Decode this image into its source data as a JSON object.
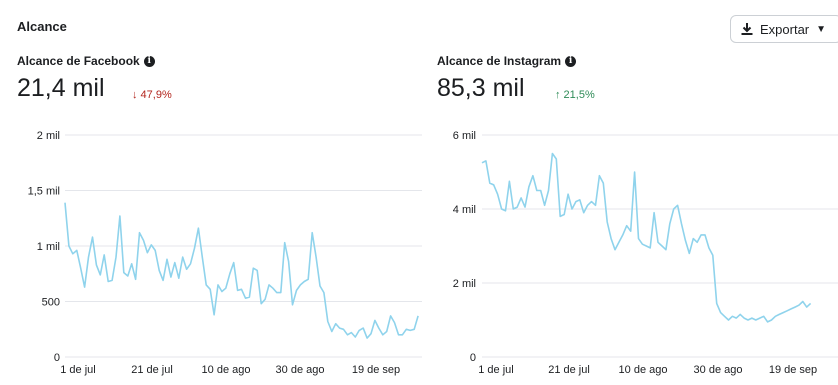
{
  "header": {
    "title": "Alcance",
    "export_label": "Exportar"
  },
  "icons": {
    "download": "download-icon",
    "info": "info-icon",
    "caret": "caret-down-icon"
  },
  "colors": {
    "line": "#8fd3ec",
    "down": "#b3261e",
    "up": "#2e8b57",
    "grid": "#e4e6eb"
  },
  "panels": [
    {
      "title": "Alcance de Facebook",
      "value": "21,4 mil",
      "delta": "↓ 47,9%",
      "trend": "down"
    },
    {
      "title": "Alcance de Instagram",
      "value": "85,3 mil",
      "delta": "↑ 21,5%",
      "trend": "up"
    }
  ],
  "chart_data": [
    {
      "type": "line",
      "title": "Alcance de Facebook",
      "xlabel": "",
      "ylabel": "",
      "ylim": [
        0,
        2000
      ],
      "yticks": [
        0,
        500,
        1000,
        1500,
        2000
      ],
      "ytick_labels": [
        "0",
        "500",
        "1 mil",
        "1,5 mil",
        "2 mil"
      ],
      "xticks": [
        0,
        20,
        40,
        60,
        80
      ],
      "xtick_labels": [
        "1 de jul",
        "21 de jul",
        "10 de ago",
        "30 de ago",
        "19 de sep"
      ],
      "xlim": [
        0,
        91
      ],
      "y": [
        1390,
        1000,
        930,
        960,
        800,
        630,
        900,
        1080,
        830,
        740,
        920,
        680,
        690,
        900,
        1270,
        760,
        730,
        840,
        700,
        1120,
        1050,
        940,
        1010,
        960,
        780,
        690,
        880,
        720,
        850,
        710,
        900,
        790,
        840,
        980,
        1160,
        900,
        650,
        610,
        380,
        650,
        590,
        620,
        750,
        850,
        600,
        610,
        530,
        540,
        800,
        780,
        480,
        520,
        650,
        620,
        580,
        580,
        1030,
        860,
        470,
        600,
        650,
        680,
        700,
        1120,
        900,
        640,
        580,
        320,
        230,
        300,
        260,
        250,
        200,
        220,
        180,
        240,
        260,
        170,
        210,
        330,
        260,
        200,
        230,
        370,
        310,
        200,
        200,
        250,
        240,
        250,
        370
      ],
      "grid": true,
      "legend": "none"
    },
    {
      "type": "line",
      "title": "Alcance de Instagram",
      "xlabel": "",
      "ylabel": "",
      "ylim": [
        0,
        6000
      ],
      "yticks": [
        0,
        2000,
        4000,
        6000
      ],
      "ytick_labels": [
        "0",
        "2 mil",
        "4 mil",
        "6 mil"
      ],
      "xticks": [
        0,
        20,
        40,
        60,
        80
      ],
      "xtick_labels": [
        "1 de jul",
        "21 de jul",
        "10 de ago",
        "30 de ago",
        "19 de sep"
      ],
      "xlim": [
        0,
        91
      ],
      "y": [
        5250,
        5300,
        4700,
        4650,
        4400,
        4000,
        3950,
        4750,
        4000,
        4050,
        4300,
        4050,
        4600,
        4900,
        4500,
        4500,
        4100,
        4500,
        5500,
        5350,
        3800,
        3850,
        4400,
        4000,
        4200,
        4250,
        3900,
        4100,
        4200,
        4100,
        4900,
        4700,
        3650,
        3200,
        2900,
        3100,
        3300,
        3550,
        3400,
        5000,
        3200,
        3050,
        3000,
        2950,
        3900,
        3100,
        3000,
        2900,
        3600,
        4000,
        4100,
        3600,
        3150,
        2800,
        3200,
        3100,
        3300,
        3300,
        2950,
        2750,
        1450,
        1200,
        1100,
        1000,
        1100,
        1050,
        1150,
        1050,
        1000,
        1050,
        1000,
        1050,
        1100,
        950,
        1000,
        1100,
        1150,
        1200,
        1250,
        1300,
        1350,
        1400,
        1500,
        1350,
        1450
      ],
      "grid": true,
      "legend": "none"
    }
  ]
}
